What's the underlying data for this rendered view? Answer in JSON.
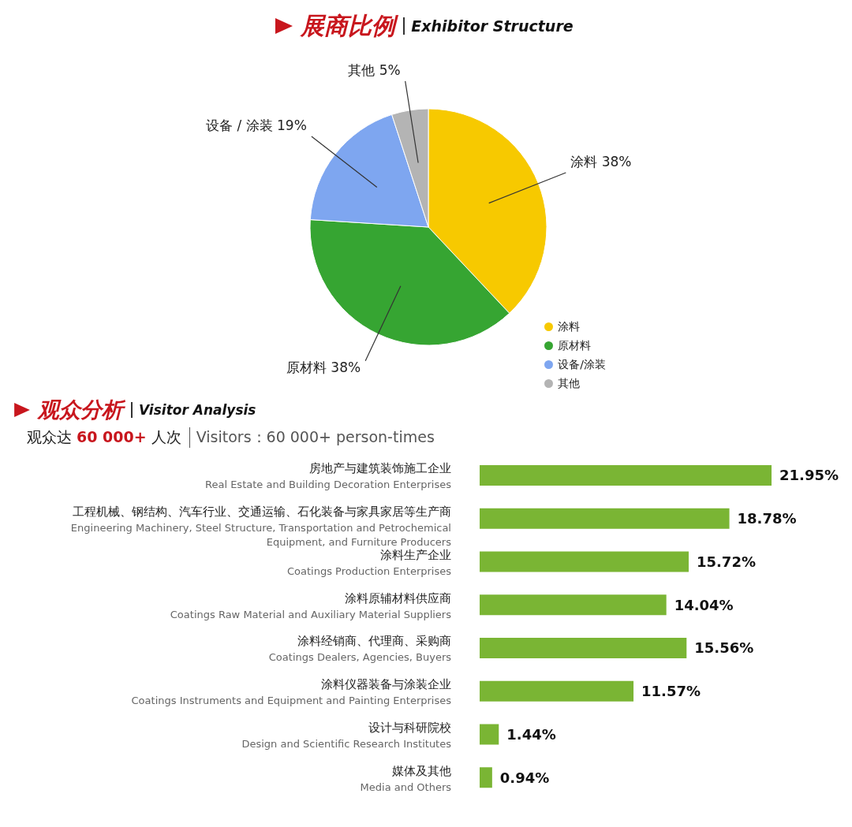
{
  "chart_data": [
    {
      "type": "pie",
      "title": "展商比例",
      "subtitle": "Exhibitor Structure",
      "categories": [
        "涂料",
        "原材料",
        "设备/涂装",
        "其他"
      ],
      "values": [
        38,
        38,
        19,
        5
      ],
      "colors": [
        "#f7c900",
        "#36a532",
        "#7ea6f0",
        "#b4b4b4"
      ],
      "value_labels": [
        "涂料 38%",
        "原材料 38%",
        "设备 / 涂装 19%",
        "其他 5%"
      ],
      "legend": "bottom right"
    },
    {
      "type": "bar",
      "orientation": "horizontal",
      "title": "观众分析",
      "subtitle": "Visitor Analysis",
      "annotations": [
        "观众达 60 000+ 人次",
        "Visitors：60 000+ person-times"
      ],
      "categories": [
        "房地产与建筑装饰施工企业\nReal Estate and Building Decoration Enterprises",
        "工程机械、钢结构、汽车行业、交通运输、石化装备与家具家居等生产商\nEngineering Machinery, Steel Structure, Transportation and Petrochemical Equipment, and Furniture Producers",
        "涂料生产企业\nCoatings Production Enterprises",
        "涂料原辅材料供应商\nCoatings Raw Material and Auxiliary Material Suppliers",
        "涂料经销商、代理商、采购商\nCoatings Dealers, Agencies, Buyers",
        "涂料仪器装备与涂装企业\nCoatings Instruments and Equipment and Painting Enterprises",
        "设计与科研院校\nDesign and Scientific Research Institutes",
        "媒体及其他\nMedia and Others"
      ],
      "values": [
        21.95,
        18.78,
        15.72,
        14.04,
        15.56,
        11.57,
        1.44,
        0.94
      ],
      "value_labels": [
        "21.95%",
        "18.78%",
        "15.72%",
        "14.04%",
        "15.56%",
        "11.57%",
        "1.44%",
        "0.94%"
      ],
      "color": "#7ab534"
    }
  ]
}
